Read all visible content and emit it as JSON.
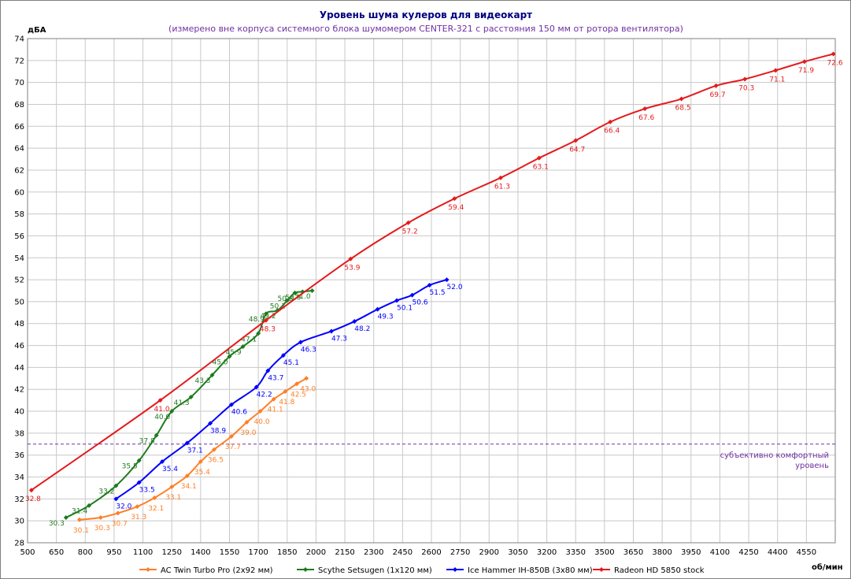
{
  "chart_data": {
    "type": "line",
    "title": "Уровень шума кулеров для видеокарт",
    "subtitle": "(измерено вне корпуса системного блока шумомером CENTER-321 с расстояния 150 мм от ротора вентилятора)",
    "ylabel": "дБА",
    "xlabel": "об/мин",
    "xlim": [
      500,
      4700
    ],
    "ylim": [
      28,
      74
    ],
    "xticks": [
      500,
      650,
      800,
      950,
      1100,
      1250,
      1400,
      1550,
      1700,
      1850,
      2000,
      2150,
      2300,
      2450,
      2600,
      2750,
      2900,
      3050,
      3200,
      3350,
      3500,
      3650,
      3800,
      3950,
      4100,
      4250,
      4400,
      4550
    ],
    "yticks": [
      28,
      30,
      32,
      34,
      36,
      38,
      40,
      42,
      44,
      46,
      48,
      50,
      52,
      54,
      56,
      58,
      60,
      62,
      64,
      66,
      68,
      70,
      72,
      74
    ],
    "grid": true,
    "legend_position": "bottom",
    "reference_line": {
      "y": 37,
      "color": "#7030a0",
      "label_line1": "субъективно комфортный",
      "label_line2": "уровень"
    },
    "series": [
      {
        "name": "AC Twin Turbo Pro (2x92 мм)",
        "color": "#ff7f27",
        "x": [
          770,
          880,
          970,
          1070,
          1160,
          1250,
          1330,
          1400,
          1470,
          1560,
          1640,
          1710,
          1780,
          1840,
          1900,
          1950
        ],
        "y": [
          30.1,
          30.3,
          30.7,
          31.3,
          32.1,
          33.1,
          34.1,
          35.4,
          36.5,
          37.7,
          39.0,
          40.0,
          41.1,
          41.8,
          42.5,
          43.0
        ],
        "labels": [
          "30.1",
          "30.3",
          "30.7",
          "31.3",
          "32.1",
          "33.1",
          "34.1",
          "35.4",
          "36.5",
          "37.7",
          "39.0",
          "40.0",
          "41.1",
          "41.8",
          "42.5",
          "43.0"
        ]
      },
      {
        "name": "Scythe Setsugen (1x120 мм)",
        "color": "#1e7b1e",
        "x": [
          700,
          820,
          960,
          1080,
          1170,
          1250,
          1350,
          1460,
          1550,
          1620,
          1700,
          1740,
          1800,
          1850,
          1890,
          1930,
          1980
        ],
        "y": [
          30.3,
          31.4,
          33.2,
          35.5,
          37.8,
          40.0,
          41.3,
          43.3,
          45.0,
          45.9,
          47.1,
          48.9,
          49.2,
          50.1,
          50.8,
          50.9,
          51.0
        ],
        "labels": [
          "30.3",
          "31.4",
          "33.2",
          "35.5",
          "37.8",
          "40.0",
          "41.3",
          "43.3",
          "45.0",
          "45.9",
          "47.1",
          "48.9",
          "49.2",
          "50.1",
          "50.8",
          "50.9",
          "51.0"
        ]
      },
      {
        "name": "Ice Hammer IH-850B (3x80 мм)",
        "color": "#0000ff",
        "x": [
          960,
          1080,
          1200,
          1330,
          1450,
          1560,
          1690,
          1750,
          1830,
          1920,
          2080,
          2200,
          2320,
          2420,
          2500,
          2590,
          2680
        ],
        "y": [
          32.0,
          33.5,
          35.4,
          37.1,
          38.9,
          40.6,
          42.2,
          43.7,
          45.1,
          46.3,
          47.3,
          48.2,
          49.3,
          50.1,
          50.6,
          51.5,
          52.0
        ],
        "labels": [
          "32.0",
          "33.5",
          "35.4",
          "37.1",
          "38.9",
          "40.6",
          "42.2",
          "43.7",
          "45.1",
          "46.3",
          "47.3",
          "48.2",
          "49.3",
          "50.1",
          "50.6",
          "51.5",
          "52.0"
        ]
      },
      {
        "name": "Radeon HD 5850 stock",
        "color": "#e31a1c",
        "x": [
          520,
          1190,
          1740,
          2180,
          2480,
          2720,
          2960,
          3160,
          3350,
          3530,
          3710,
          3900,
          4080,
          4230,
          4390,
          4540,
          4690
        ],
        "y": [
          32.8,
          41.0,
          48.3,
          53.9,
          57.2,
          59.4,
          61.3,
          63.1,
          64.7,
          66.4,
          67.6,
          68.5,
          69.7,
          70.3,
          71.1,
          71.9,
          72.6
        ],
        "labels": [
          "32.8",
          "41.0",
          "48.3",
          "53.9",
          "57.2",
          "59.4",
          "61.3",
          "63.1",
          "64.7",
          "66.4",
          "67.6",
          "68.5",
          "69.7",
          "70.3",
          "71.1",
          "71.9",
          "72.6"
        ]
      }
    ]
  }
}
